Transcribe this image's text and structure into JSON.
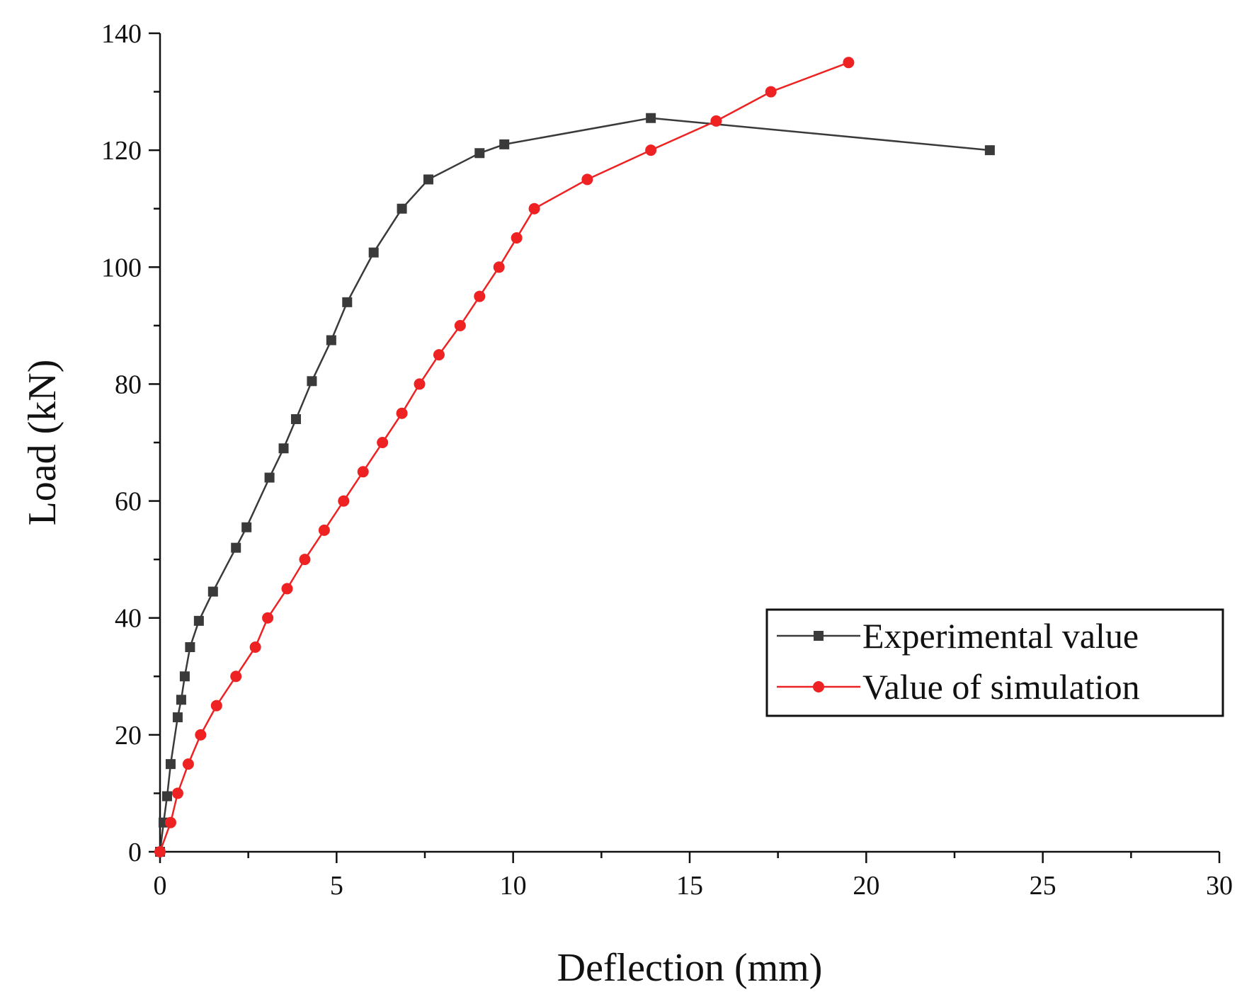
{
  "chart_data": {
    "type": "line",
    "xlabel": "Deflection (mm)",
    "ylabel": "Load (kN)",
    "xlim": [
      0,
      30
    ],
    "ylim": [
      0,
      140
    ],
    "x_ticks": [
      0,
      5,
      10,
      15,
      20,
      25,
      30
    ],
    "x_tick_labels": [
      "0",
      "5",
      "10",
      "15",
      "20",
      "25",
      "30"
    ],
    "y_ticks": [
      0,
      20,
      40,
      60,
      80,
      100,
      120,
      140
    ],
    "y_tick_labels": [
      "0",
      "20",
      "40",
      "60",
      "80",
      "100",
      "120",
      "140"
    ],
    "grid": false,
    "legend_position": "bottom-right",
    "series": [
      {
        "name": "Experimental value",
        "color": "#3a3a3a",
        "marker": "square",
        "x": [
          0,
          0.1,
          0.2,
          0.3,
          0.5,
          0.6,
          0.7,
          0.85,
          1.1,
          1.5,
          2.15,
          2.45,
          3.1,
          3.5,
          3.85,
          4.3,
          4.85,
          5.3,
          6.05,
          6.85,
          7.6,
          9.05,
          9.75,
          13.9,
          23.5
        ],
        "y": [
          0,
          5,
          9.5,
          15,
          23,
          26,
          30,
          35,
          39.5,
          44.5,
          52,
          55.5,
          64,
          69,
          74,
          80.5,
          87.5,
          94,
          102.5,
          110,
          115,
          119.5,
          121,
          125.5,
          120
        ]
      },
      {
        "name": "Value of simulation",
        "color": "#ee2222",
        "marker": "circle",
        "x": [
          0,
          0.3,
          0.5,
          0.8,
          1.15,
          1.6,
          2.15,
          2.7,
          3.05,
          3.6,
          4.1,
          4.65,
          5.2,
          5.75,
          6.3,
          6.85,
          7.35,
          7.9,
          8.5,
          9.05,
          9.6,
          10.1,
          10.6,
          12.1,
          13.9,
          15.75,
          17.3,
          19.5
        ],
        "y": [
          0,
          5,
          10,
          15,
          20,
          25,
          30,
          35,
          40,
          45,
          50,
          55,
          60,
          65,
          70,
          75,
          80,
          85,
          90,
          95,
          100,
          105,
          110,
          115,
          120,
          125,
          130,
          135
        ]
      }
    ]
  }
}
